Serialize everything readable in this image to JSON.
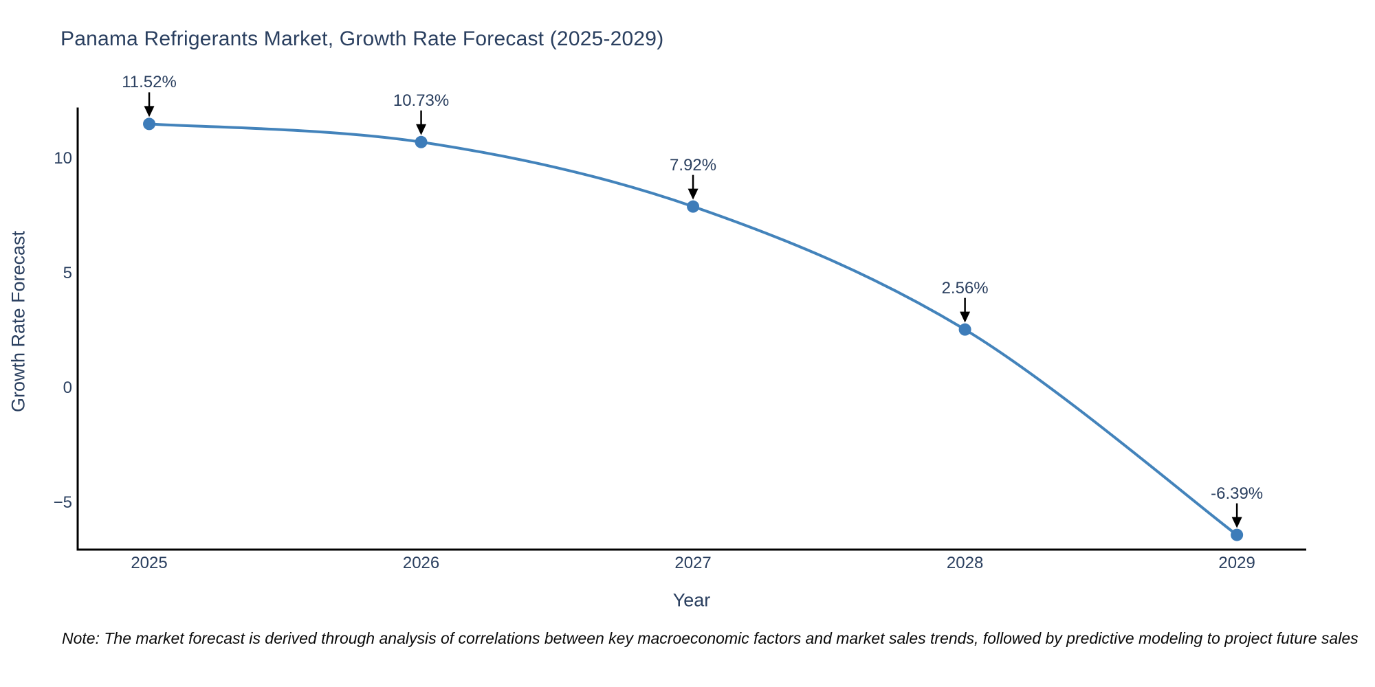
{
  "chart_data": {
    "type": "line",
    "title": "Panama Refrigerants Market, Growth Rate Forecast (2025-2029)",
    "xlabel": "Year",
    "ylabel": "Growth Rate Forecast",
    "x": [
      2025,
      2026,
      2027,
      2028,
      2029
    ],
    "values": [
      11.52,
      10.73,
      7.92,
      2.56,
      -6.39
    ],
    "point_labels": [
      "11.52%",
      "10.73%",
      "7.92%",
      "2.56%",
      "-6.39%"
    ],
    "series_name": "Growth Rate Forecast",
    "x_ticks": [
      2025,
      2026,
      2027,
      2028,
      2029
    ],
    "y_ticks": [
      10,
      5,
      0,
      -5
    ],
    "xlim": [
      2024.737,
      2029.255
    ],
    "ylim": [
      -7.03,
      12.19
    ],
    "grid": false,
    "legend": false,
    "line_shape": "spline",
    "annotations_have_arrows": true,
    "colors": {
      "line": "#4383bb",
      "marker": "#3d7cb9",
      "axis": "#000000",
      "text": "#2a3f5f",
      "arrow": "#000000",
      "background": "#ffffff"
    }
  },
  "note": "Note: The market forecast is derived through analysis of correlations between key macroeconomic factors and market sales trends, followed by predictive modeling to project future sales"
}
